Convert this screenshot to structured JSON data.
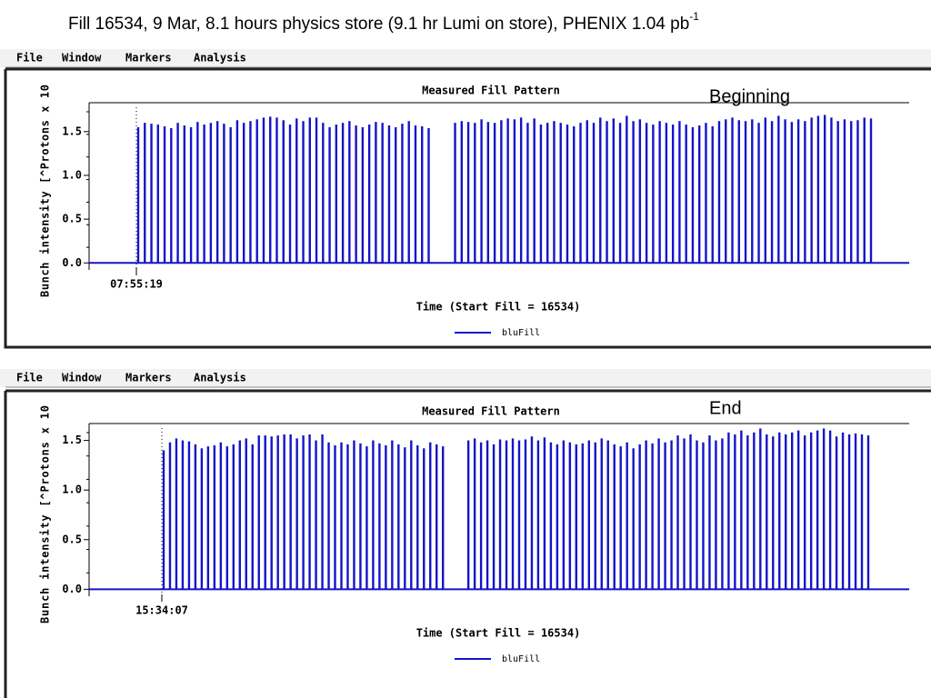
{
  "title": "Fill 16534, 9 Mar, 8.1 hours physics store (9.1 hr Lumi on store), PHENIX 1.04 pb",
  "title_superscript": "-1",
  "panels": [
    {
      "menu": [
        "File",
        "Window",
        "Markers",
        "Analysis"
      ],
      "annotation": "Beginning"
    },
    {
      "menu": [
        "File",
        "Window",
        "Markers",
        "Analysis"
      ],
      "annotation": "End"
    }
  ],
  "chart_data": [
    {
      "type": "bar",
      "title": "Measured Fill Pattern",
      "y_label": "Bunch intensity [^Protons x 10",
      "x_label": "Time (Start Fill = 16534)",
      "start_time": "07:55:19",
      "ylim": [
        -0.08,
        1.83
      ],
      "yticks": [
        {
          "value": 0,
          "label": "0.0"
        },
        0.5,
        {
          "value": 1,
          "label": "1.0"
        },
        1.5
      ],
      "series": [
        {
          "name": "bluFill",
          "color": "#1414c8",
          "values": [
            1.55,
            1.6,
            1.59,
            1.58,
            1.56,
            1.54,
            1.6,
            1.57,
            1.55,
            1.61,
            1.58,
            1.6,
            1.62,
            1.59,
            1.55,
            1.63,
            1.6,
            1.62,
            1.64,
            1.66,
            1.67,
            1.66,
            1.63,
            1.58,
            1.65,
            1.62,
            1.66,
            1.66,
            1.6,
            1.55,
            1.58,
            1.6,
            1.62,
            1.57,
            1.55,
            1.58,
            1.61,
            1.6,
            1.57,
            1.55,
            1.59,
            1.62,
            1.57,
            1.56,
            1.54,
            0,
            0,
            0,
            1.6,
            1.62,
            1.61,
            1.6,
            1.64,
            1.61,
            1.6,
            1.63,
            1.65,
            1.64,
            1.66,
            1.6,
            1.65,
            1.58,
            1.6,
            1.62,
            1.6,
            1.58,
            1.56,
            1.6,
            1.63,
            1.6,
            1.66,
            1.62,
            1.65,
            1.6,
            1.68,
            1.62,
            1.64,
            1.6,
            1.58,
            1.62,
            1.6,
            1.58,
            1.62,
            1.58,
            1.55,
            1.57,
            1.6,
            1.56,
            1.62,
            1.64,
            1.66,
            1.63,
            1.62,
            1.64,
            1.6,
            1.66,
            1.62,
            1.68,
            1.64,
            1.61,
            1.64,
            1.62,
            1.66,
            1.68,
            1.69,
            1.66,
            1.62,
            1.64,
            1.62,
            1.63,
            1.66,
            1.65
          ]
        }
      ]
    },
    {
      "type": "bar",
      "title": "Measured Fill Pattern",
      "y_label": "Bunch intensity [^Protons x 10",
      "x_label": "Time (Start Fill = 16534)",
      "start_time": "15:34:07",
      "ylim": [
        -0.07,
        1.67
      ],
      "yticks": [
        {
          "value": 0,
          "label": "0.0"
        },
        0.5,
        {
          "value": 1,
          "label": "1.0"
        },
        1.5
      ],
      "series": [
        {
          "name": "bluFill",
          "color": "#1414c8",
          "values": [
            1.4,
            1.48,
            1.52,
            1.5,
            1.49,
            1.46,
            1.42,
            1.44,
            1.45,
            1.48,
            1.44,
            1.46,
            1.5,
            1.52,
            1.46,
            1.55,
            1.55,
            1.54,
            1.55,
            1.56,
            1.56,
            1.52,
            1.55,
            1.56,
            1.5,
            1.56,
            1.48,
            1.45,
            1.48,
            1.46,
            1.5,
            1.47,
            1.44,
            1.5,
            1.47,
            1.45,
            1.5,
            1.46,
            1.43,
            1.5,
            1.45,
            1.42,
            1.48,
            1.46,
            1.44,
            0,
            0,
            0,
            1.5,
            1.52,
            1.48,
            1.5,
            1.46,
            1.51,
            1.5,
            1.52,
            1.5,
            1.51,
            1.54,
            1.5,
            1.53,
            1.48,
            1.46,
            1.5,
            1.48,
            1.46,
            1.47,
            1.5,
            1.48,
            1.52,
            1.5,
            1.46,
            1.44,
            1.48,
            1.42,
            1.46,
            1.5,
            1.47,
            1.52,
            1.48,
            1.5,
            1.55,
            1.52,
            1.56,
            1.5,
            1.48,
            1.55,
            1.5,
            1.52,
            1.58,
            1.56,
            1.6,
            1.55,
            1.58,
            1.62,
            1.56,
            1.54,
            1.58,
            1.56,
            1.58,
            1.6,
            1.55,
            1.58,
            1.6,
            1.62,
            1.6,
            1.54,
            1.58,
            1.56,
            1.57,
            1.56,
            1.55
          ]
        }
      ]
    }
  ]
}
